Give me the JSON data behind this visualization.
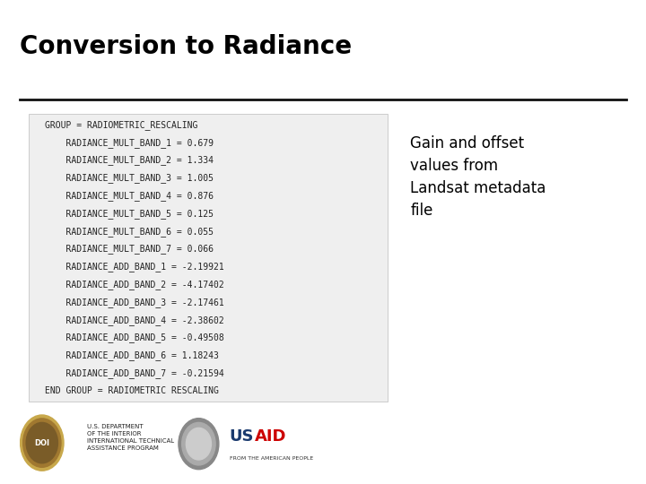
{
  "title": "Conversion to Radiance",
  "title_fontsize": 20,
  "title_fontweight": "bold",
  "background_color": "#ffffff",
  "code_text": [
    "GROUP = RADIOMETRIC_RESCALING",
    "    RADIANCE_MULT_BAND_1 = 0.679",
    "    RADIANCE_MULT_BAND_2 = 1.334",
    "    RADIANCE_MULT_BAND_3 = 1.005",
    "    RADIANCE_MULT_BAND_4 = 0.876",
    "    RADIANCE_MULT_BAND_5 = 0.125",
    "    RADIANCE_MULT_BAND_6 = 0.055",
    "    RADIANCE_MULT_BAND_7 = 0.066",
    "    RADIANCE_ADD_BAND_1 = -2.19921",
    "    RADIANCE_ADD_BAND_2 = -4.17402",
    "    RADIANCE_ADD_BAND_3 = -2.17461",
    "    RADIANCE_ADD_BAND_4 = -2.38602",
    "    RADIANCE_ADD_BAND_5 = -0.49508",
    "    RADIANCE_ADD_BAND_6 = 1.18243",
    "    RADIANCE_ADD_BAND_7 = -0.21594",
    "END GROUP = RADIOMETRIC RESCALING"
  ],
  "annotation_text": "Gain and offset\nvalues from\nLandsat metadata\nfile",
  "annotation_fontsize": 12,
  "annotation_color": "#000000",
  "code_fontsize": 7.0,
  "code_color": "#222222",
  "code_box_color": "#efefef",
  "code_box_edge": "#cccccc",
  "line_color": "#111111",
  "footer_text_1": "U.S. DEPARTMENT\nOF THE INTERIOR\nINTERNATIONAL TECHNICAL\nASSISTANCE PROGRAM",
  "footer_fontsize": 5,
  "usaid_text": "USAID",
  "usaid_fontsize": 13,
  "usaid_sub": "FROM THE AMERICAN PEOPLE",
  "usaid_sub_fontsize": 4.5,
  "usaid_color": "#1a3a6e",
  "usaid_red": "#cc0000"
}
